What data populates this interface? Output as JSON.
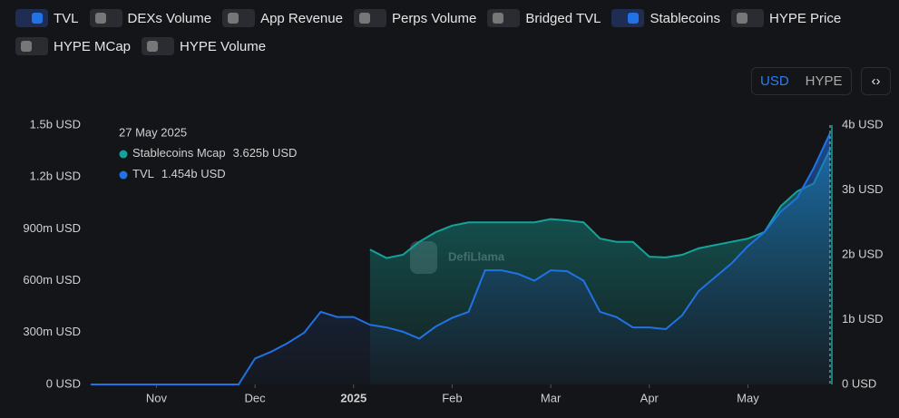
{
  "toggles": [
    {
      "label": "TVL",
      "on": true
    },
    {
      "label": "DEXs Volume",
      "on": false
    },
    {
      "label": "App Revenue",
      "on": false
    },
    {
      "label": "Perps Volume",
      "on": false
    },
    {
      "label": "Bridged TVL",
      "on": false
    },
    {
      "label": "Stablecoins",
      "on": true
    },
    {
      "label": "HYPE Price",
      "on": false
    },
    {
      "label": "HYPE MCap",
      "on": false
    },
    {
      "label": "HYPE Volume",
      "on": false
    }
  ],
  "currency": {
    "options": [
      "USD",
      "HYPE"
    ],
    "selected": "USD"
  },
  "embed_button": "‹›",
  "chart_data": {
    "type": "area",
    "watermark": "DefiLlama",
    "categories": [
      null,
      null,
      null,
      null,
      "Nov",
      null,
      null,
      null,
      null,
      null,
      "Dec",
      null,
      null,
      null,
      null,
      null,
      "2025",
      null,
      null,
      null,
      null,
      null,
      "Feb",
      null,
      null,
      null,
      null,
      null,
      "Mar",
      null,
      null,
      null,
      null,
      null,
      "Apr",
      null,
      null,
      null,
      null,
      null,
      "May",
      null,
      null,
      null,
      null,
      null
    ],
    "series": [
      {
        "name": "Stablecoins Mcap",
        "color": "#14a39a",
        "axis": "y2",
        "values": [
          null,
          null,
          null,
          null,
          null,
          null,
          null,
          null,
          null,
          null,
          null,
          null,
          null,
          null,
          null,
          null,
          null,
          2080000000,
          1950000000,
          2000000000,
          2200000000,
          2350000000,
          2450000000,
          2500000000,
          2500000000,
          2500000000,
          2500000000,
          2500000000,
          2550000000,
          2530000000,
          2500000000,
          2250000000,
          2200000000,
          2200000000,
          1970000000,
          1960000000,
          2000000000,
          2100000000,
          2150000000,
          2200000000,
          2250000000,
          2350000000,
          2750000000,
          2980000000,
          3100000000,
          3625000000
        ]
      },
      {
        "name": "TVL",
        "color": "#2172e5",
        "values": [
          0,
          0,
          0,
          0,
          0,
          0,
          0,
          0,
          0,
          0,
          150000000,
          190000000,
          240000000,
          300000000,
          420000000,
          390000000,
          390000000,
          345000000,
          330000000,
          305000000,
          265000000,
          335000000,
          385000000,
          420000000,
          660000000,
          660000000,
          640000000,
          600000000,
          660000000,
          655000000,
          600000000,
          420000000,
          390000000,
          330000000,
          330000000,
          320000000,
          400000000,
          540000000,
          620000000,
          700000000,
          800000000,
          880000000,
          1000000000,
          1080000000,
          1250000000,
          1454000000
        ]
      }
    ],
    "ylim": [
      0,
      1500000000
    ],
    "yticks": [
      {
        "value": 0,
        "label": "0 USD"
      },
      {
        "value": 300000000,
        "label": "300m USD"
      },
      {
        "value": 600000000,
        "label": "600m USD"
      },
      {
        "value": 900000000,
        "label": "900m USD"
      },
      {
        "value": 1200000000,
        "label": "1.2b USD"
      },
      {
        "value": 1500000000,
        "label": "1.5b USD"
      }
    ],
    "y2lim": [
      0,
      4000000000
    ],
    "y2ticks": [
      {
        "value": 0,
        "label": "0 USD"
      },
      {
        "value": 1000000000,
        "label": "1b USD"
      },
      {
        "value": 2000000000,
        "label": "2b USD"
      },
      {
        "value": 3000000000,
        "label": "3b USD"
      },
      {
        "value": 4000000000,
        "label": "4b USD"
      }
    ],
    "y2color": "#14a39a",
    "tooltip": {
      "date": "27 May 2025",
      "items": [
        {
          "name": "Stablecoins Mcap",
          "text": "3.625b USD"
        },
        {
          "name": "TVL",
          "text": "1.454b USD"
        }
      ]
    }
  }
}
